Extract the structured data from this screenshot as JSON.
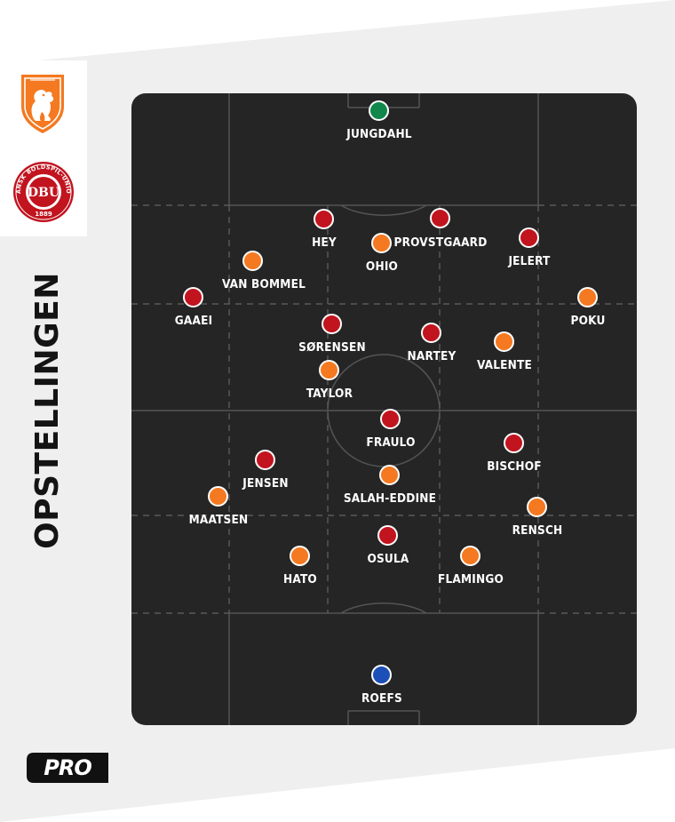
{
  "side_title": "OPSTELLINGEN",
  "crests": {
    "netherlands": {
      "icon": "knvb-lion-crest-icon",
      "color": "#f47920"
    },
    "denmark": {
      "icon": "dbu-crest-icon",
      "text": "DBU",
      "ring_text": "DANSK BOLDSPIL-UNION",
      "year": "1889",
      "color": "#c1141f"
    }
  },
  "brand": {
    "label": "PRO"
  },
  "colors": {
    "netherlands": "#f47920",
    "denmark": "#c1141f",
    "gk_top": "#12874b",
    "gk_bottom": "#1d4fb8",
    "pitch": "#252525",
    "background": "#efefef"
  },
  "players": [
    {
      "name": "JUNGDAHL",
      "team": "denmark-gk"
    },
    {
      "name": "HEY",
      "team": "denmark"
    },
    {
      "name": "PROVSTGAARD",
      "team": "denmark"
    },
    {
      "name": "JELERT",
      "team": "denmark"
    },
    {
      "name": "OHIO",
      "team": "netherlands"
    },
    {
      "name": "VAN BOMMEL",
      "team": "netherlands"
    },
    {
      "name": "GAAEI",
      "team": "denmark"
    },
    {
      "name": "POKU",
      "team": "netherlands"
    },
    {
      "name": "SØRENSEN",
      "team": "denmark"
    },
    {
      "name": "NARTEY",
      "team": "denmark"
    },
    {
      "name": "VALENTE",
      "team": "netherlands"
    },
    {
      "name": "TAYLOR",
      "team": "netherlands"
    },
    {
      "name": "FRAULO",
      "team": "denmark"
    },
    {
      "name": "BISCHOF",
      "team": "denmark"
    },
    {
      "name": "JENSEN",
      "team": "denmark"
    },
    {
      "name": "SALAH-EDDINE",
      "team": "netherlands"
    },
    {
      "name": "MAATSEN",
      "team": "netherlands"
    },
    {
      "name": "RENSCH",
      "team": "netherlands"
    },
    {
      "name": "OSULA",
      "team": "denmark"
    },
    {
      "name": "HATO",
      "team": "netherlands"
    },
    {
      "name": "FLAMINGO",
      "team": "netherlands"
    },
    {
      "name": "ROEFS",
      "team": "netherlands-gk"
    }
  ]
}
